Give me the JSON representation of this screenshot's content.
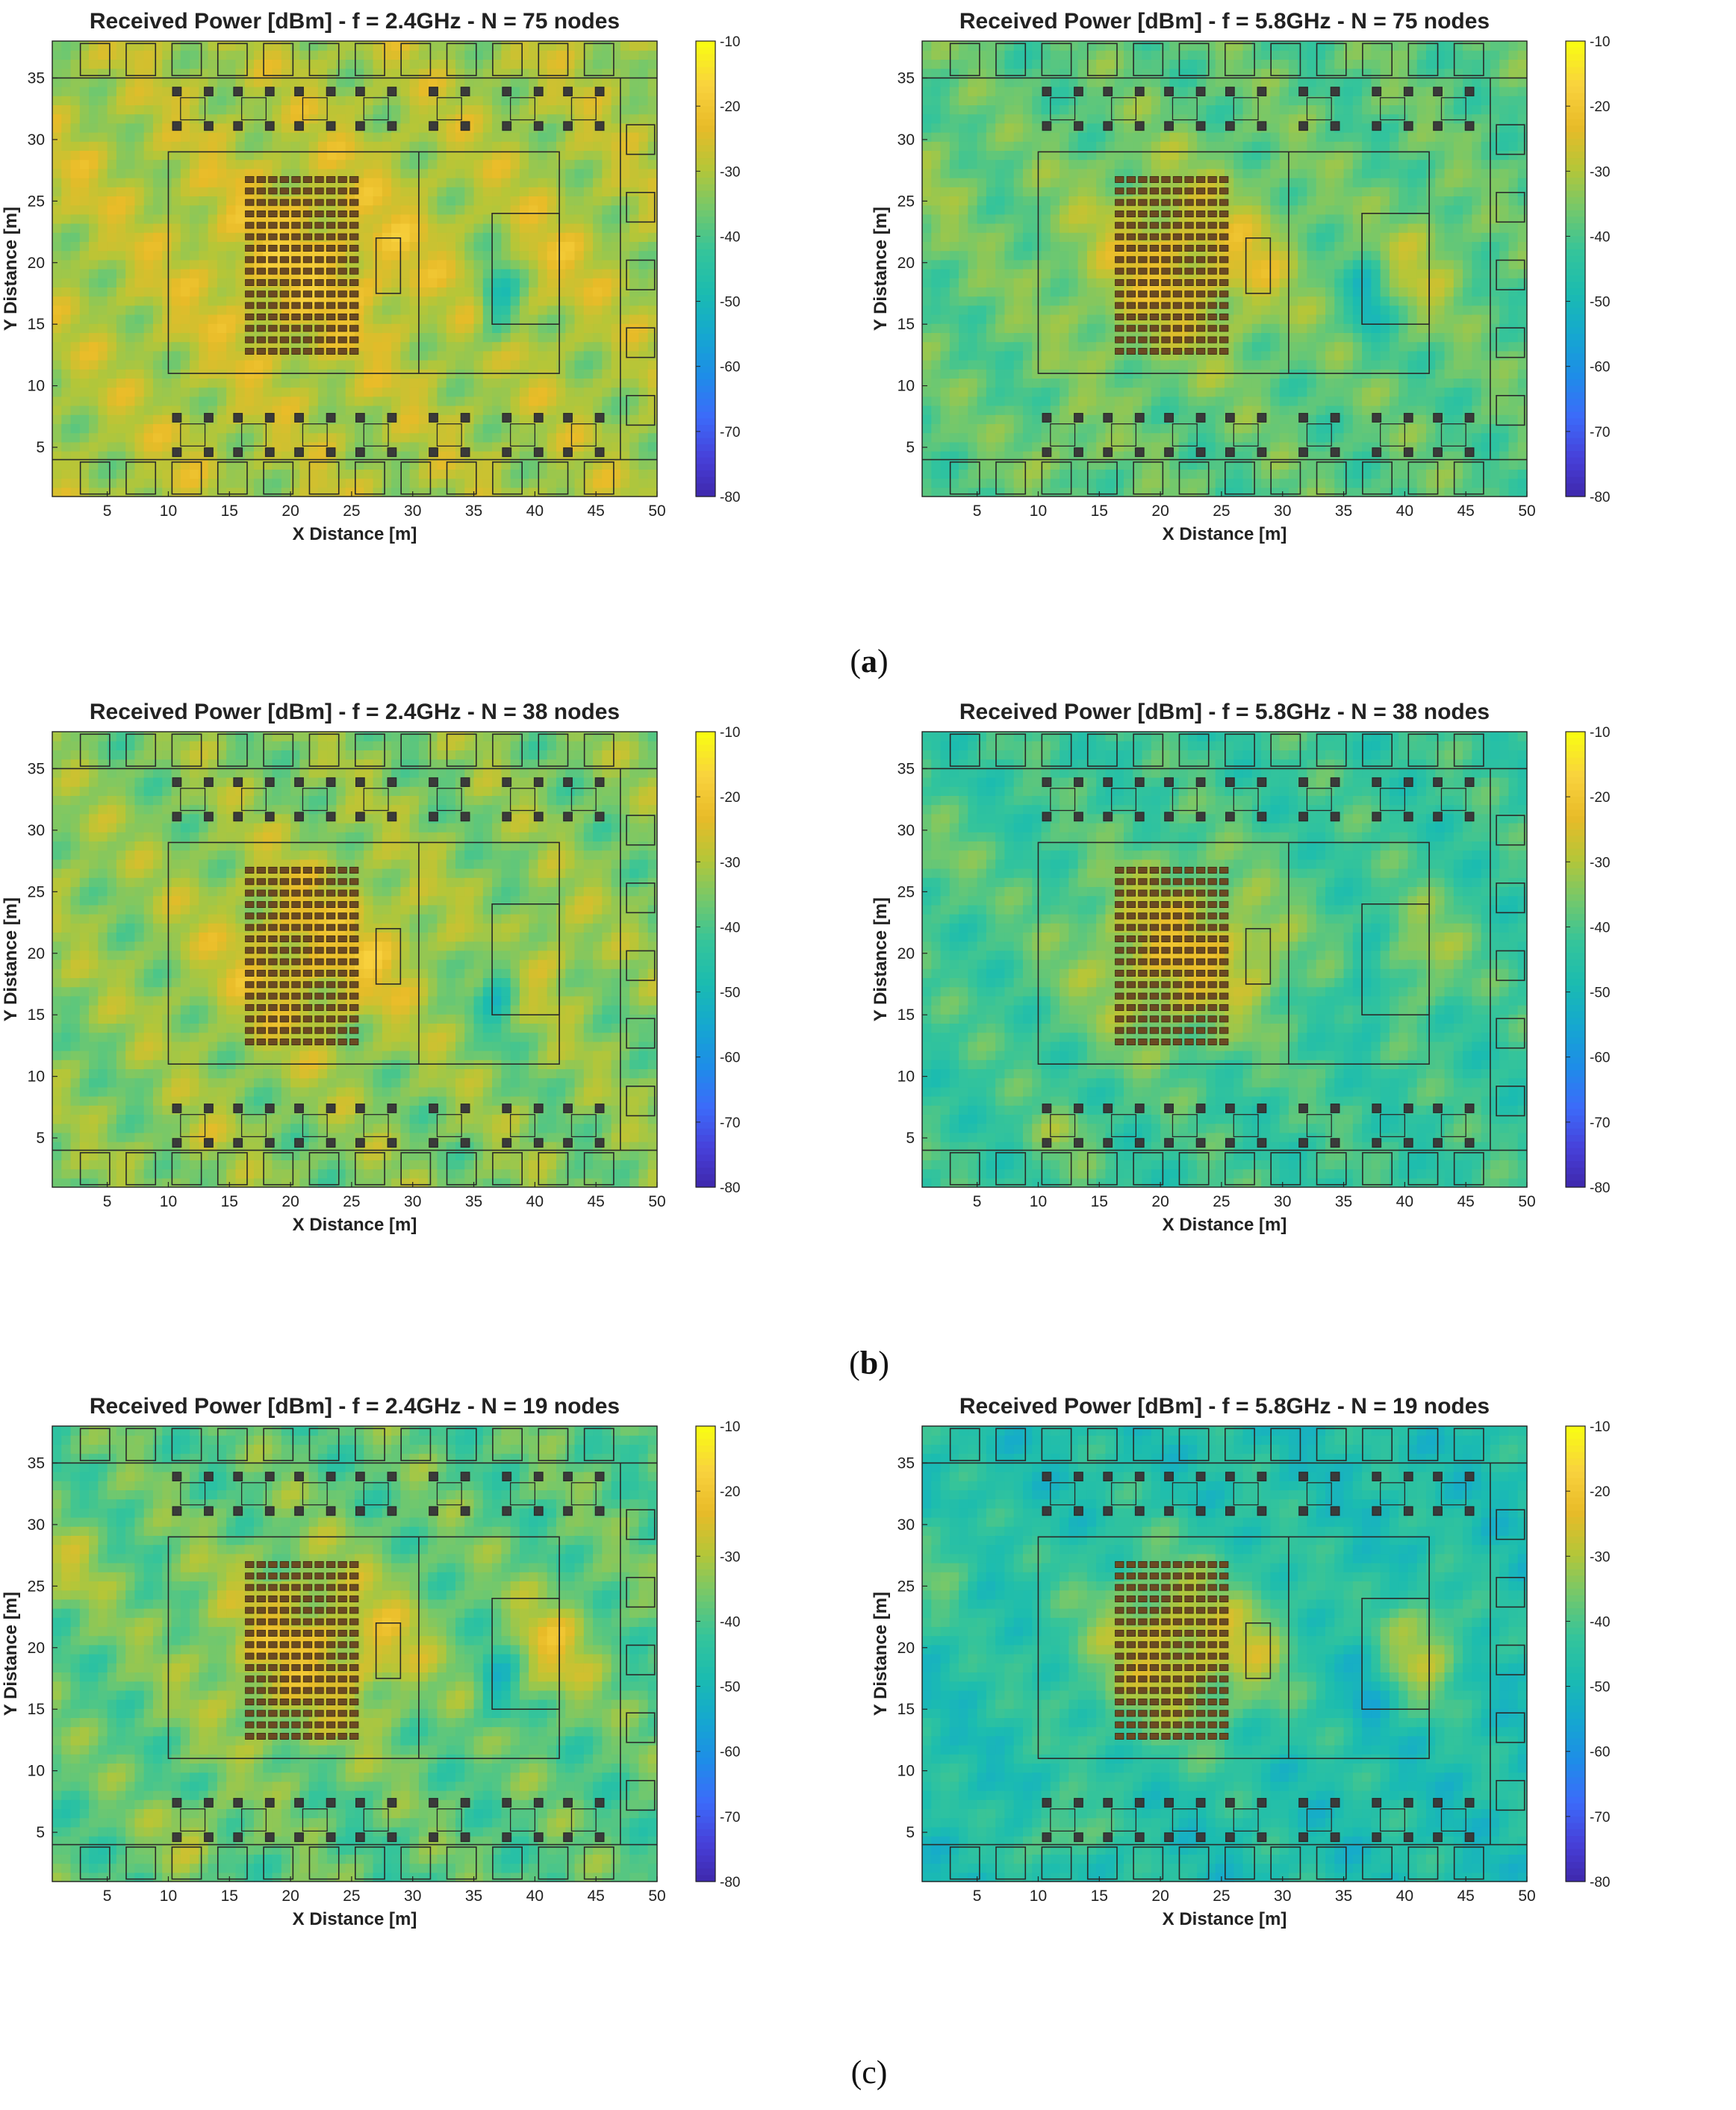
{
  "figure": {
    "captions": [
      "(a)",
      "(b)",
      "(c)"
    ],
    "caption_letters": [
      "a",
      "b",
      "c"
    ]
  },
  "colormap": {
    "name": "parula",
    "stops": [
      "#3e26a8",
      "#4740d9",
      "#3c6bfa",
      "#1e8de8",
      "#15a8cf",
      "#1bbcb0",
      "#35c49a",
      "#73c86c",
      "#b5c638",
      "#e8bb28",
      "#f9d23e",
      "#f9fb14"
    ]
  },
  "chart_data": [
    {
      "type": "heatmap",
      "row": "a",
      "side": "left",
      "title": "Received Power [dBm] - f = 2.4GHz - N = 75 nodes",
      "xlabel": "X Distance [m]",
      "ylabel": "Y Distance [m]",
      "xlim": [
        0.5,
        50
      ],
      "ylim": [
        1,
        38
      ],
      "xticks": [
        5,
        10,
        15,
        20,
        25,
        30,
        35,
        40,
        45,
        50
      ],
      "yticks": [
        5,
        10,
        15,
        20,
        25,
        30,
        35
      ],
      "clim": [
        -80,
        -10
      ],
      "cticks": [
        -10,
        -20,
        -30,
        -40,
        -50,
        -60,
        -70,
        -80
      ],
      "frequency_ghz": 2.4,
      "nodes": 75,
      "field": {
        "background_dbm": -30,
        "hall_dbm": -22,
        "hall_area_dbm": -26,
        "stage_dbm": -24,
        "right_dbm": -26,
        "coldspot_dbm": -52,
        "variation_db": 7
      }
    },
    {
      "type": "heatmap",
      "row": "a",
      "side": "right",
      "title": "Received Power [dBm] - f = 5.8GHz - N = 75 nodes",
      "xlabel": "X Distance [m]",
      "ylabel": "Y Distance [m]",
      "xlim": [
        0.5,
        50
      ],
      "ylim": [
        1,
        38
      ],
      "xticks": [
        5,
        10,
        15,
        20,
        25,
        30,
        35,
        40,
        45,
        50
      ],
      "yticks": [
        5,
        10,
        15,
        20,
        25,
        30,
        35
      ],
      "clim": [
        -80,
        -10
      ],
      "cticks": [
        -10,
        -20,
        -30,
        -40,
        -50,
        -60,
        -70,
        -80
      ],
      "frequency_ghz": 5.8,
      "nodes": 75,
      "field": {
        "background_dbm": -38,
        "hall_dbm": -23,
        "hall_area_dbm": -33,
        "stage_dbm": -28,
        "right_dbm": -30,
        "coldspot_dbm": -54,
        "variation_db": 6
      }
    },
    {
      "type": "heatmap",
      "row": "b",
      "side": "left",
      "title": "Received Power [dBm] - f = 2.4GHz - N = 38 nodes",
      "xlabel": "X Distance [m]",
      "ylabel": "Y Distance [m]",
      "xlim": [
        0.5,
        50
      ],
      "ylim": [
        1,
        38
      ],
      "xticks": [
        5,
        10,
        15,
        20,
        25,
        30,
        35,
        40,
        45,
        50
      ],
      "yticks": [
        5,
        10,
        15,
        20,
        25,
        30,
        35
      ],
      "clim": [
        -80,
        -10
      ],
      "cticks": [
        -10,
        -20,
        -30,
        -40,
        -50,
        -60,
        -70,
        -80
      ],
      "frequency_ghz": 2.4,
      "nodes": 38,
      "field": {
        "background_dbm": -34,
        "hall_dbm": -23,
        "hall_area_dbm": -29,
        "stage_dbm": -26,
        "right_dbm": -28,
        "coldspot_dbm": -52,
        "variation_db": 7
      }
    },
    {
      "type": "heatmap",
      "row": "b",
      "side": "right",
      "title": "Received Power [dBm] - f = 5.8GHz - N = 38 nodes",
      "xlabel": "X Distance [m]",
      "ylabel": "Y Distance [m]",
      "xlim": [
        0.5,
        50
      ],
      "ylim": [
        1,
        38
      ],
      "xticks": [
        5,
        10,
        15,
        20,
        25,
        30,
        35,
        40,
        45,
        50
      ],
      "yticks": [
        5,
        10,
        15,
        20,
        25,
        30,
        35
      ],
      "clim": [
        -80,
        -10
      ],
      "cticks": [
        -10,
        -20,
        -30,
        -40,
        -50,
        -60,
        -70,
        -80
      ],
      "frequency_ghz": 5.8,
      "nodes": 38,
      "field": {
        "background_dbm": -42,
        "hall_dbm": -24,
        "hall_area_dbm": -36,
        "stage_dbm": -31,
        "right_dbm": -32,
        "coldspot_dbm": -55,
        "variation_db": 6
      }
    },
    {
      "type": "heatmap",
      "row": "c",
      "side": "left",
      "title": "Received Power [dBm] - f = 2.4GHz - N = 19 nodes",
      "xlabel": "X Distance [m]",
      "ylabel": "Y Distance [m]",
      "xlim": [
        0.5,
        50
      ],
      "ylim": [
        1,
        38
      ],
      "xticks": [
        5,
        10,
        15,
        20,
        25,
        30,
        35,
        40,
        45,
        50
      ],
      "yticks": [
        5,
        10,
        15,
        20,
        25,
        30,
        35
      ],
      "clim": [
        -80,
        -10
      ],
      "cticks": [
        -10,
        -20,
        -30,
        -40,
        -50,
        -60,
        -70,
        -80
      ],
      "frequency_ghz": 2.4,
      "nodes": 19,
      "field": {
        "background_dbm": -38,
        "hall_dbm": -24,
        "hall_area_dbm": -32,
        "stage_dbm": -27,
        "right_dbm": -26,
        "coldspot_dbm": -53,
        "variation_db": 7
      }
    },
    {
      "type": "heatmap",
      "row": "c",
      "side": "right",
      "title": "Received Power [dBm] - f = 5.8GHz - N = 19 nodes",
      "xlabel": "X Distance [m]",
      "ylabel": "Y Distance [m]",
      "xlim": [
        0.5,
        50
      ],
      "ylim": [
        1,
        38
      ],
      "xticks": [
        5,
        10,
        15,
        20,
        25,
        30,
        35,
        40,
        45,
        50
      ],
      "yticks": [
        5,
        10,
        15,
        20,
        25,
        30,
        35
      ],
      "clim": [
        -80,
        -10
      ],
      "cticks": [
        -10,
        -20,
        -30,
        -40,
        -50,
        -60,
        -70,
        -80
      ],
      "frequency_ghz": 5.8,
      "nodes": 19,
      "field": {
        "background_dbm": -47,
        "hall_dbm": -25,
        "hall_area_dbm": -40,
        "stage_dbm": -34,
        "right_dbm": -30,
        "coldspot_dbm": -56,
        "variation_db": 6
      }
    }
  ]
}
